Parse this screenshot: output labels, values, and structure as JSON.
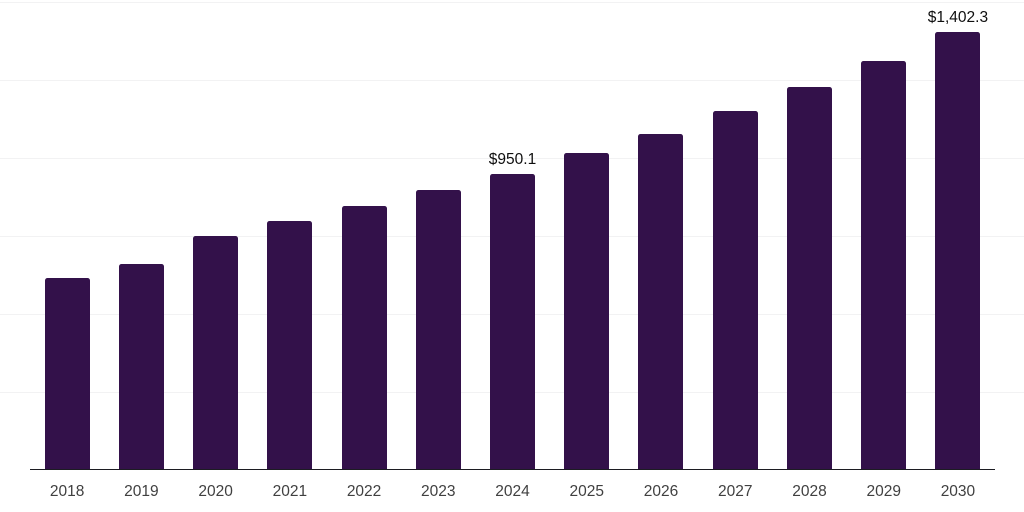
{
  "chart": {
    "background_color": "#ffffff",
    "bar_color": "#33114a",
    "axis_line_color": "#1c1c22",
    "gridline_color": "#f2f2f3",
    "tick_label_color": "#404040",
    "data_label_color": "#0f0f0f"
  },
  "chart_data": {
    "type": "bar",
    "categories": [
      "2018",
      "2019",
      "2020",
      "2021",
      "2022",
      "2023",
      "2024",
      "2025",
      "2026",
      "2027",
      "2028",
      "2029",
      "2030"
    ],
    "values": [
      614,
      659,
      749,
      797,
      845,
      896,
      950.1,
      1015,
      1076,
      1150,
      1227,
      1310,
      1402.3
    ],
    "data_labels": [
      "",
      "",
      "",
      "",
      "",
      "",
      "$950.1",
      "",
      "",
      "",
      "",
      "",
      "$1,402.3"
    ],
    "title": "",
    "xlabel": "",
    "ylabel": "",
    "ylim": [
      0,
      1500
    ],
    "gridline_step": 250,
    "grid": "horizontal-only",
    "y_axis_labels": "hidden",
    "legend": "none"
  }
}
